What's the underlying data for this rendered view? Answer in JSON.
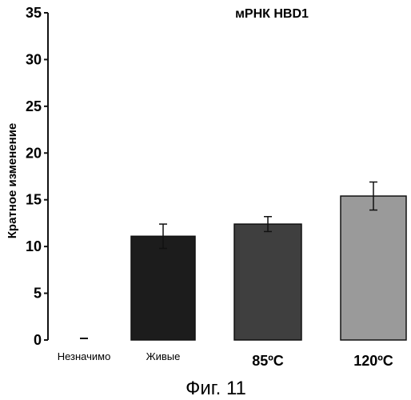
{
  "figure_caption": "Фиг. 11",
  "chart_data": {
    "type": "bar",
    "title": "мРНК HBD1",
    "xlabel": "",
    "ylabel": "Кратное изменение",
    "categories": [
      "Незначимо",
      "Живые",
      "85ºC",
      "120ºC"
    ],
    "values": [
      0,
      11.1,
      12.4,
      15.4
    ],
    "error": [
      0,
      1.3,
      0.8,
      1.5
    ],
    "bar_colors": [
      "#1a1a1a",
      "#1c1c1c",
      "#3f3f3f",
      "#9a9a9a"
    ],
    "ylim": [
      0,
      35
    ],
    "yticks": [
      0,
      5,
      10,
      15,
      20,
      25,
      30,
      35
    ],
    "yticks_labels": [
      "0",
      "5",
      "10",
      "15",
      "20",
      "25",
      "30",
      "35"
    ],
    "grid": false,
    "legend": "none"
  }
}
